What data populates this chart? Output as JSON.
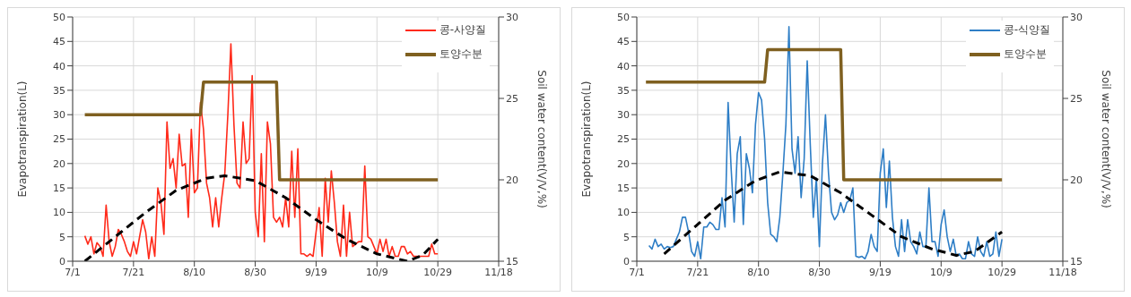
{
  "chart_data": [
    {
      "type": "line",
      "xlabel": null,
      "ylabel": "Evapotranspiration(L)",
      "y2label": "Soil water content(V/V,%)",
      "grid": true,
      "legend": "top right",
      "marker": "none",
      "xlim": [
        "--07-01",
        "--11-18"
      ],
      "xticks": [
        {
          "value": "--07-01",
          "label": "7/1"
        },
        {
          "value": "--07-21",
          "label": "7/21"
        },
        {
          "value": "--08-10",
          "label": "8/10"
        },
        {
          "value": "--08-30",
          "label": "8/30"
        },
        {
          "value": "--09-19",
          "label": "9/19"
        },
        {
          "value": "--10-09",
          "label": "10/9"
        },
        {
          "value": "--10-29",
          "label": "10/29"
        },
        {
          "value": "--11-18",
          "label": "11/18"
        }
      ],
      "ylim": [
        0,
        50
      ],
      "yticks": [
        0,
        5,
        10,
        15,
        20,
        25,
        30,
        35,
        40,
        45,
        50
      ],
      "y2lim": [
        15,
        30
      ],
      "y2ticks": [
        15,
        20,
        25,
        30
      ],
      "x": [
        "--07-05",
        "--07-06",
        "--07-07",
        "--07-08",
        "--07-09",
        "--07-10",
        "--07-11",
        "--07-12",
        "--07-13",
        "--07-14",
        "--07-15",
        "--07-16",
        "--07-17",
        "--07-18",
        "--07-19",
        "--07-20",
        "--07-21",
        "--07-22",
        "--07-23",
        "--07-24",
        "--07-25",
        "--07-26",
        "--07-27",
        "--07-28",
        "--07-29",
        "--07-30",
        "--07-31",
        "--08-01",
        "--08-02",
        "--08-03",
        "--08-04",
        "--08-05",
        "--08-06",
        "--08-07",
        "--08-08",
        "--08-09",
        "--08-10",
        "--08-11",
        "--08-12",
        "--08-13",
        "--08-14",
        "--08-15",
        "--08-16",
        "--08-17",
        "--08-18",
        "--08-19",
        "--08-20",
        "--08-21",
        "--08-22",
        "--08-23",
        "--08-24",
        "--08-25",
        "--08-26",
        "--08-27",
        "--08-28",
        "--08-29",
        "--08-30",
        "--08-31",
        "--09-01",
        "--09-02",
        "--09-03",
        "--09-04",
        "--09-05",
        "--09-06",
        "--09-07",
        "--09-08",
        "--09-09",
        "--09-10",
        "--09-11",
        "--09-12",
        "--09-13",
        "--09-14",
        "--09-15",
        "--09-16",
        "--09-17",
        "--09-18",
        "--09-19",
        "--09-20",
        "--09-21",
        "--09-22",
        "--09-23",
        "--09-24",
        "--09-25",
        "--09-26",
        "--09-27",
        "--09-28",
        "--09-29",
        "--09-30",
        "--10-01",
        "--10-02",
        "--10-03",
        "--10-04",
        "--10-05",
        "--10-06",
        "--10-07",
        "--10-08",
        "--10-09",
        "--10-10",
        "--10-11",
        "--10-12",
        "--10-13",
        "--10-14",
        "--10-15",
        "--10-16",
        "--10-17",
        "--10-18",
        "--10-19",
        "--10-20",
        "--10-21",
        "--10-22",
        "--10-23",
        "--10-24",
        "--10-25",
        "--10-26",
        "--10-27",
        "--10-28",
        "--10-29"
      ],
      "series": [
        {
          "name": "콩-사양질",
          "color": "#ff2a1a",
          "values": [
            5.2,
            3.5,
            5,
            1.5,
            3.8,
            3,
            1,
            11.5,
            4,
            1,
            3,
            6.5,
            5.5,
            4,
            2,
            1,
            4,
            1.5,
            5,
            8.5,
            6,
            0.5,
            5,
            1,
            15,
            12,
            5.5,
            28.5,
            19,
            21,
            15,
            26,
            19.5,
            20,
            9,
            27,
            14,
            15,
            32.5,
            27,
            16,
            13,
            7,
            13,
            7,
            13,
            18,
            30,
            44.5,
            28,
            16,
            15,
            28.5,
            20,
            21,
            38,
            10,
            5,
            22,
            4,
            28.5,
            24,
            9,
            8,
            9,
            7,
            13,
            7,
            22.5,
            9,
            23,
            1.5,
            1.5,
            1,
            1.5,
            1,
            6,
            11,
            1,
            17,
            8,
            18.5,
            12,
            4,
            1,
            11.5,
            1,
            10,
            3,
            3.5,
            4,
            4,
            19.5,
            5,
            4.5,
            3,
            1.5,
            4.5,
            2,
            4.5,
            1,
            3,
            1,
            1,
            3,
            3,
            1.5,
            2,
            1,
            1,
            1,
            1,
            1,
            1,
            3.5,
            1.5,
            1.5
          ]
        },
        {
          "name": "토양수분",
          "axis": "y2",
          "color": "#7f6020",
          "x": [
            "--07-05",
            "--08-12",
            "--08-13",
            "--09-06",
            "--09-07",
            "--10-29"
          ],
          "values": [
            24,
            24,
            26,
            26,
            20,
            20
          ]
        },
        {
          "color": "#000000",
          "line_style": "dashed",
          "x": [
            "--07-05",
            "--07-15",
            "--07-25",
            "--08-04",
            "--08-14",
            "--08-20",
            "--08-30",
            "--09-09",
            "--09-19",
            "--09-29",
            "--10-09",
            "--10-19",
            "--10-24",
            "--10-29"
          ],
          "values": [
            0,
            5,
            10,
            14.5,
            17,
            17.5,
            16.5,
            13,
            8.5,
            4.5,
            1.5,
            0,
            1.2,
            4.5
          ]
        }
      ]
    },
    {
      "type": "line",
      "ylabel": "Evapotranspiration(L)",
      "y2label": "Soil water content(V/V,%)",
      "grid": true,
      "legend": "top right",
      "marker": "none",
      "xlim": [
        "--07-01",
        "--11-18"
      ],
      "xticks": [
        {
          "value": "--07-01",
          "label": "7/1"
        },
        {
          "value": "--07-21",
          "label": "7/21"
        },
        {
          "value": "--08-10",
          "label": "8/10"
        },
        {
          "value": "--08-30",
          "label": "8/30"
        },
        {
          "value": "--09-19",
          "label": "9/19"
        },
        {
          "value": "--10-09",
          "label": "10/9"
        },
        {
          "value": "--10-29",
          "label": "10/29"
        },
        {
          "value": "--11-18",
          "label": "11/18"
        }
      ],
      "ylim": [
        0,
        50
      ],
      "yticks": [
        0,
        5,
        10,
        15,
        20,
        25,
        30,
        35,
        40,
        45,
        50
      ],
      "y2lim": [
        15,
        30
      ],
      "y2ticks": [
        15,
        20,
        25,
        30
      ],
      "x": [
        "--07-05",
        "--07-06",
        "--07-07",
        "--07-08",
        "--07-09",
        "--07-10",
        "--07-11",
        "--07-12",
        "--07-13",
        "--07-14",
        "--07-15",
        "--07-16",
        "--07-17",
        "--07-18",
        "--07-19",
        "--07-20",
        "--07-21",
        "--07-22",
        "--07-23",
        "--07-24",
        "--07-25",
        "--07-26",
        "--07-27",
        "--07-28",
        "--07-29",
        "--07-30",
        "--07-31",
        "--08-01",
        "--08-02",
        "--08-03",
        "--08-04",
        "--08-05",
        "--08-06",
        "--08-07",
        "--08-08",
        "--08-09",
        "--08-10",
        "--08-11",
        "--08-12",
        "--08-13",
        "--08-14",
        "--08-15",
        "--08-16",
        "--08-17",
        "--08-18",
        "--08-19",
        "--08-20",
        "--08-21",
        "--08-22",
        "--08-23",
        "--08-24",
        "--08-25",
        "--08-26",
        "--08-27",
        "--08-28",
        "--08-29",
        "--08-30",
        "--08-31",
        "--09-01",
        "--09-02",
        "--09-03",
        "--09-04",
        "--09-05",
        "--09-06",
        "--09-07",
        "--09-08",
        "--09-09",
        "--09-10",
        "--09-11",
        "--09-12",
        "--09-13",
        "--09-14",
        "--09-15",
        "--09-16",
        "--09-17",
        "--09-18",
        "--09-19",
        "--09-20",
        "--09-21",
        "--09-22",
        "--09-23",
        "--09-24",
        "--09-25",
        "--09-26",
        "--09-27",
        "--09-28",
        "--09-29",
        "--09-30",
        "--10-01",
        "--10-02",
        "--10-03",
        "--10-04",
        "--10-05",
        "--10-06",
        "--10-07",
        "--10-08",
        "--10-09",
        "--10-10",
        "--10-11",
        "--10-12",
        "--10-13",
        "--10-14",
        "--10-15",
        "--10-16",
        "--10-17",
        "--10-18",
        "--10-19",
        "--10-20",
        "--10-21",
        "--10-22",
        "--10-23",
        "--10-24",
        "--10-25",
        "--10-26",
        "--10-27",
        "--10-28",
        "--10-29"
      ],
      "series": [
        {
          "name": "콩-식양질",
          "color": "#2e7ec6",
          "values": [
            3.2,
            2.5,
            4.5,
            3,
            3.5,
            2.5,
            3,
            2.8,
            3,
            4.5,
            6,
            9,
            9,
            6,
            2,
            1,
            4,
            0.5,
            7,
            7,
            8,
            7.5,
            6.5,
            6.5,
            13,
            7,
            32.5,
            19,
            8,
            22,
            25.5,
            7.5,
            22,
            19,
            14,
            28,
            34.5,
            33,
            25,
            12,
            5.5,
            5,
            4,
            9,
            18,
            28,
            48,
            23,
            18,
            25.5,
            13,
            21,
            41,
            24,
            9,
            17,
            3,
            20,
            30,
            18,
            10,
            8.5,
            9.5,
            12,
            10,
            12,
            12.5,
            15,
            1,
            0.8,
            1,
            0.5,
            2,
            5.5,
            3,
            2,
            18,
            23,
            11,
            20.5,
            9,
            3,
            1,
            8.5,
            2,
            8.5,
            4,
            3,
            1.5,
            6,
            3,
            3,
            15,
            4,
            4,
            1,
            7.5,
            10.5,
            5,
            2,
            4.5,
            1,
            1.5,
            0.5,
            0.5,
            4,
            1.5,
            1,
            5,
            2,
            1,
            4,
            1,
            1.5,
            6,
            1,
            4.5
          ]
        },
        {
          "name": "토양수분",
          "axis": "y2",
          "color": "#7f6020",
          "x": [
            "--07-04",
            "--08-12",
            "--08-13",
            "--09-06",
            "--09-07",
            "--10-29"
          ],
          "values": [
            26,
            26,
            28,
            28,
            20,
            20
          ]
        },
        {
          "color": "#000000",
          "line_style": "dashed",
          "x": [
            "--07-10",
            "--07-20",
            "--07-30",
            "--08-09",
            "--08-17",
            "--08-27",
            "--09-06",
            "--09-16",
            "--09-26",
            "--10-06",
            "--10-14",
            "--10-20",
            "--10-29"
          ],
          "values": [
            1.5,
            7,
            12.5,
            16.5,
            18.3,
            17.5,
            14,
            9.5,
            5,
            2.5,
            1.2,
            2,
            6
          ]
        }
      ]
    }
  ]
}
